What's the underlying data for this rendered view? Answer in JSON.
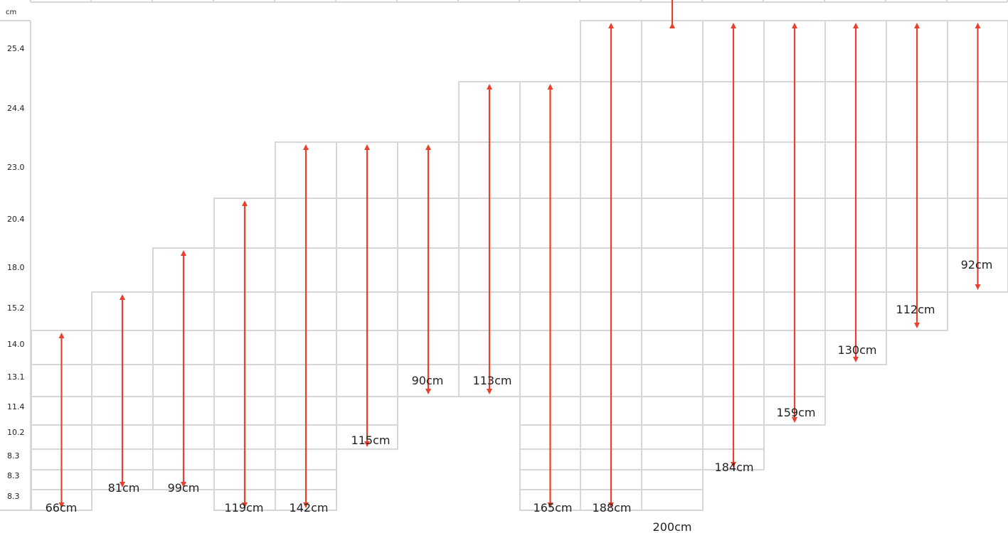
{
  "unit_label": "cm",
  "row_labels": [
    "25.4",
    "24.4",
    "23.0",
    "20.4",
    "18.0",
    "15.2",
    "14.0",
    "13.1",
    "11.4",
    "10.2",
    "8.3",
    "8.3",
    "8.3"
  ],
  "columns": [
    {
      "label": "66cm"
    },
    {
      "label": "81cm"
    },
    {
      "label": "99cm"
    },
    {
      "label": "119cm"
    },
    {
      "label": "142cm"
    },
    {
      "label": "115cm"
    },
    {
      "label": "90cm"
    },
    {
      "label": "113cm"
    },
    {
      "label": "165cm"
    },
    {
      "label": "188cm"
    },
    {
      "label": "200cm"
    },
    {
      "label": "184cm"
    },
    {
      "label": "159cm"
    },
    {
      "label": "130cm"
    },
    {
      "label": "112cm"
    },
    {
      "label": "92cm"
    }
  ],
  "colors": {
    "grid": "#d7d7d7",
    "arrow": "#e8412c",
    "text": "#222222"
  }
}
